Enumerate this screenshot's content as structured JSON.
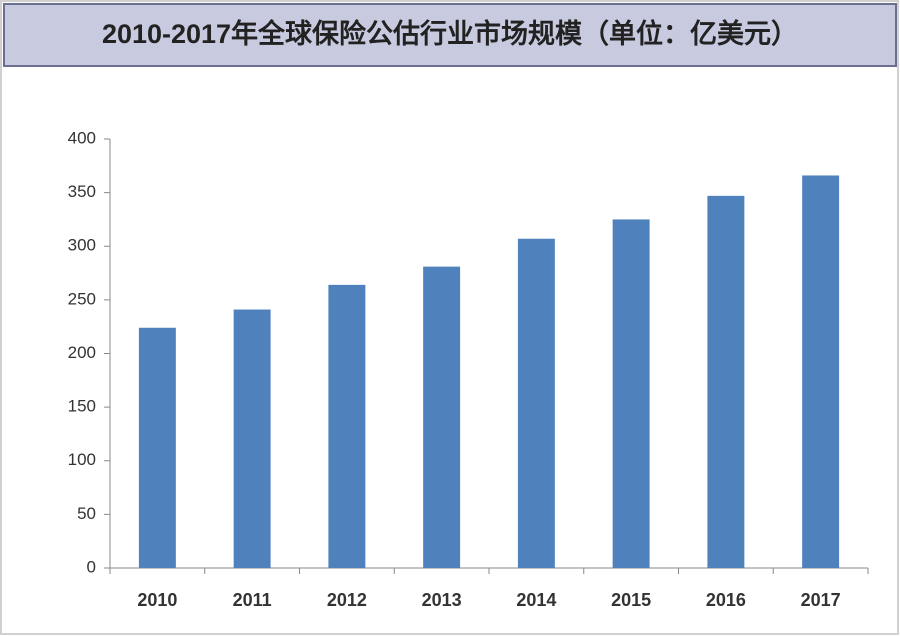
{
  "chart_data": {
    "type": "bar",
    "title": "2010-2017年全球保险公估行业市场规模（单位：亿美元）",
    "categories": [
      "2010",
      "2011",
      "2012",
      "2013",
      "2014",
      "2015",
      "2016",
      "2017"
    ],
    "values": [
      224,
      241,
      264,
      281,
      307,
      325,
      347,
      366
    ],
    "color": "#4f81bd",
    "ylim": [
      0,
      400
    ],
    "yticks": [
      0,
      50,
      100,
      150,
      200,
      250,
      300,
      350,
      400
    ],
    "grid": false
  }
}
